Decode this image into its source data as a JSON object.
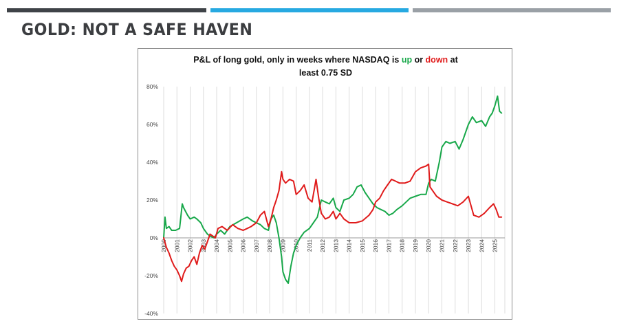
{
  "slide": {
    "title": "GOLD: NOT A SAFE HAVEN"
  },
  "colors": {
    "bar_dark": "#3f4348",
    "bar_blue": "#27a9e1",
    "bar_gray": "#9aa0a6",
    "up": "#18a84a",
    "down": "#e01b1b"
  },
  "chart_data": {
    "type": "line",
    "title_parts": {
      "prefix": "P&L of long gold, only in weeks where NASDAQ is ",
      "up": "up",
      "or": " or ",
      "down": "down",
      "suffix": " at",
      "line2": "least 0.75 SD"
    },
    "ylim": [
      -40,
      80
    ],
    "yticks": [
      -40,
      -20,
      0,
      20,
      40,
      60,
      80
    ],
    "ytick_labels": [
      "-40%",
      "-20%",
      "0%",
      "20%",
      "40%",
      "60%",
      "80%"
    ],
    "xlim": [
      2000,
      2025.75
    ],
    "x_categories": [
      "2000",
      "2001",
      "2002",
      "2003",
      "2004",
      "2005",
      "2006",
      "2007",
      "2008",
      "2009",
      "2010",
      "2011",
      "2012",
      "2013",
      "2014",
      "2015",
      "2016",
      "2017",
      "2018",
      "2019",
      "2020",
      "2021",
      "2022",
      "2023",
      "2024",
      "2025"
    ],
    "grid": "vertical",
    "series": [
      {
        "name": "up",
        "color": "#18a84a",
        "x": [
          2000,
          2000.1,
          2000.2,
          2000.4,
          2000.6,
          2000.9,
          2001.2,
          2001.4,
          2001.5,
          2001.8,
          2002.0,
          2002.3,
          2002.5,
          2002.8,
          2003.0,
          2003.3,
          2003.5,
          2003.8,
          2004.0,
          2004.3,
          2004.6,
          2005.0,
          2005.5,
          2006.0,
          2006.3,
          2006.7,
          2007.0,
          2007.3,
          2007.6,
          2007.9,
          2008.1,
          2008.3,
          2008.5,
          2008.7,
          2008.9,
          2009.0,
          2009.2,
          2009.4,
          2009.6,
          2009.8,
          2010.0,
          2010.3,
          2010.6,
          2011.0,
          2011.3,
          2011.6,
          2011.9,
          2012.2,
          2012.5,
          2012.8,
          2013.0,
          2013.3,
          2013.6,
          2014.0,
          2014.3,
          2014.6,
          2014.9,
          2015.2,
          2015.5,
          2015.8,
          2016.1,
          2016.4,
          2016.7,
          2017.0,
          2017.3,
          2017.6,
          2018.0,
          2018.3,
          2018.6,
          2019.0,
          2019.4,
          2019.8,
          2020.0,
          2020.2,
          2020.5,
          2020.8,
          2021.0,
          2021.3,
          2021.6,
          2022.0,
          2022.3,
          2022.6,
          2023.0,
          2023.3,
          2023.6,
          2024.0,
          2024.3,
          2024.6,
          2024.8,
          2025.0,
          2025.2,
          2025.35,
          2025.5
        ],
        "values": [
          0,
          11,
          5,
          6,
          4,
          4,
          5,
          18,
          16,
          12,
          10,
          11,
          10,
          8,
          5,
          2,
          1,
          0,
          2,
          4,
          2,
          6,
          8,
          10,
          11,
          9,
          8,
          7,
          5,
          4,
          10,
          12,
          8,
          0,
          -10,
          -18,
          -22,
          -24,
          -15,
          -8,
          -4,
          0,
          3,
          5,
          8,
          11,
          20,
          19,
          18,
          21,
          16,
          14,
          20,
          21,
          23,
          27,
          28,
          24,
          21,
          18,
          16,
          15,
          14,
          12,
          13,
          15,
          17,
          19,
          21,
          22,
          23,
          23,
          29,
          31,
          30,
          40,
          48,
          51,
          50,
          51,
          47,
          52,
          60,
          64,
          61,
          62,
          59,
          64,
          66,
          70,
          75,
          67,
          66
        ]
      },
      {
        "name": "down",
        "color": "#e01b1b",
        "x": [
          2000,
          2000.2,
          2000.4,
          2000.6,
          2000.8,
          2001.0,
          2001.2,
          2001.35,
          2001.5,
          2001.7,
          2001.9,
          2002.1,
          2002.3,
          2002.5,
          2002.7,
          2002.9,
          2003.1,
          2003.3,
          2003.5,
          2003.7,
          2003.9,
          2004.1,
          2004.4,
          2004.8,
          2005.2,
          2005.6,
          2006.0,
          2006.3,
          2006.6,
          2007.0,
          2007.3,
          2007.6,
          2007.9,
          2008.1,
          2008.3,
          2008.5,
          2008.7,
          2008.9,
          2009.0,
          2009.2,
          2009.5,
          2009.8,
          2010.0,
          2010.3,
          2010.6,
          2010.9,
          2011.2,
          2011.4,
          2011.5,
          2011.7,
          2011.9,
          2012.2,
          2012.5,
          2012.8,
          2013.0,
          2013.3,
          2013.6,
          2014.0,
          2014.5,
          2015.0,
          2015.5,
          2015.8,
          2016.0,
          2016.3,
          2016.6,
          2016.9,
          2017.2,
          2017.5,
          2017.8,
          2018.2,
          2018.6,
          2019.0,
          2019.4,
          2019.8,
          2020.0,
          2020.1,
          2020.3,
          2020.6,
          2021.0,
          2021.4,
          2021.8,
          2022.2,
          2022.6,
          2023.0,
          2023.4,
          2023.8,
          2024.2,
          2024.6,
          2024.9,
          2025.1,
          2025.3,
          2025.5
        ],
        "values": [
          0,
          -5,
          -8,
          -12,
          -15,
          -17,
          -20,
          -23,
          -19,
          -16,
          -15,
          -12,
          -10,
          -14,
          -8,
          -4,
          -6,
          -2,
          2,
          1,
          0,
          5,
          6,
          4,
          7,
          5,
          4,
          5,
          6,
          8,
          12,
          14,
          6,
          10,
          16,
          20,
          25,
          35,
          31,
          29,
          31,
          30,
          23,
          25,
          28,
          21,
          19,
          27,
          31,
          21,
          13,
          10,
          11,
          14,
          10,
          13,
          10,
          8,
          8,
          9,
          12,
          15,
          19,
          21,
          25,
          28,
          31,
          30,
          29,
          29,
          30,
          35,
          37,
          38,
          39,
          27,
          25,
          22,
          20,
          19,
          18,
          17,
          19,
          22,
          12,
          11,
          13,
          16,
          18,
          15,
          11,
          11
        ]
      }
    ]
  }
}
